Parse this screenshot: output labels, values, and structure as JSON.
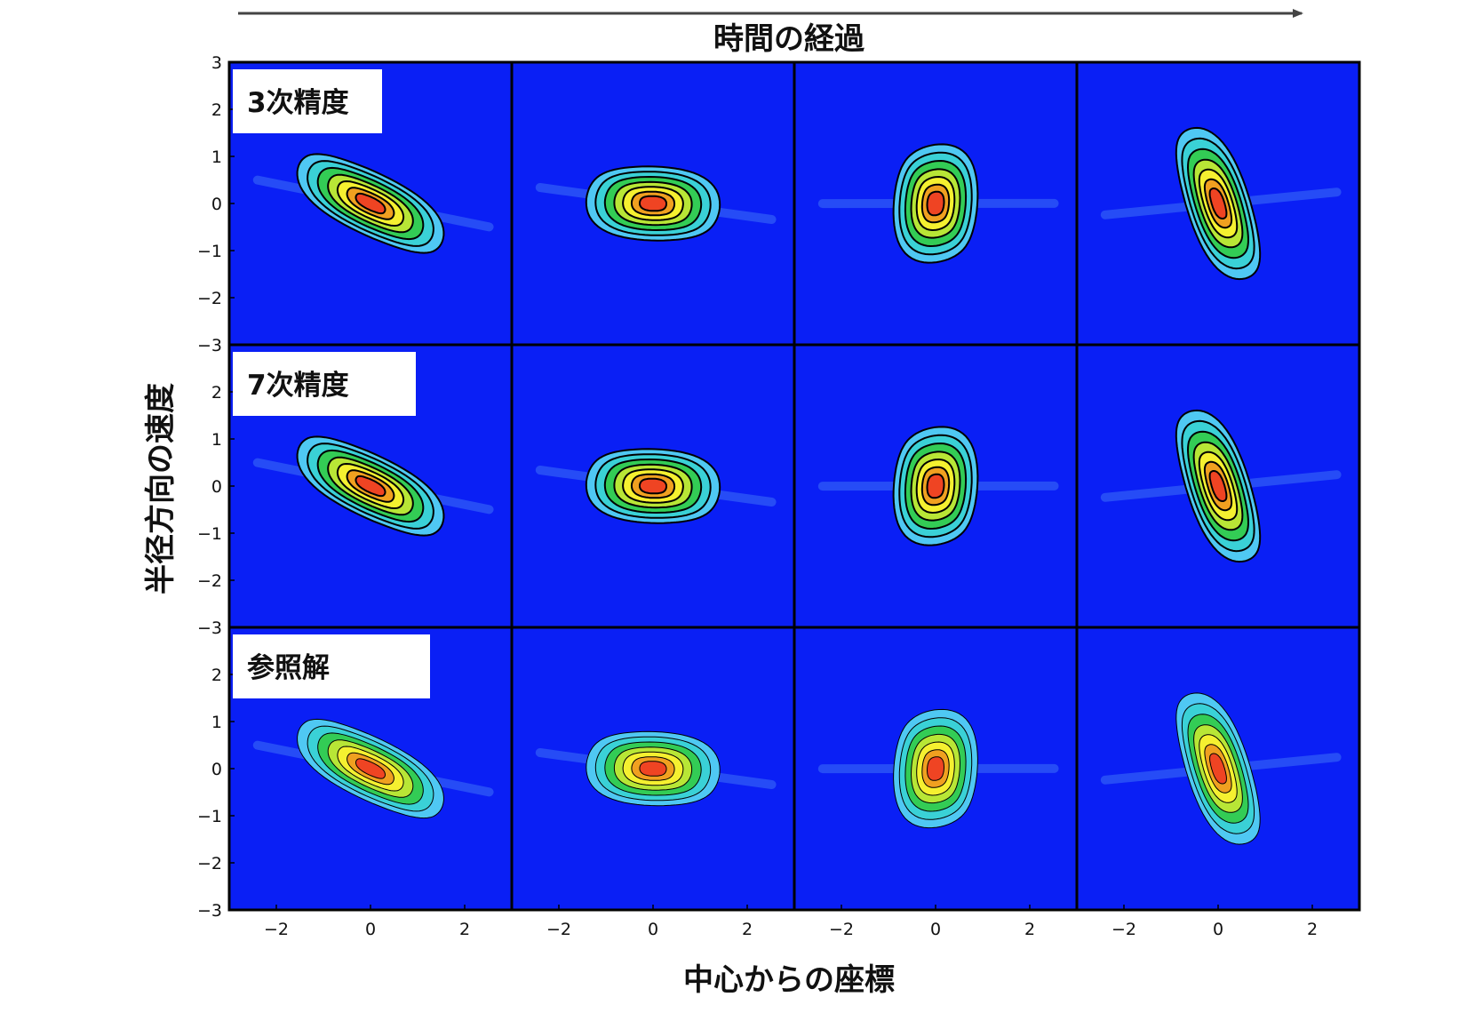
{
  "header": {
    "time_label": "時間の経過"
  },
  "axes": {
    "xlabel": "中心からの座標",
    "ylabel": "半径方向の速度"
  },
  "colors": {
    "background": "#0a1ff5",
    "levels": [
      "#0a1ff5",
      "#4fc8f3",
      "#3ad1d6",
      "#33cc55",
      "#b8e636",
      "#f5f030",
      "#f0a020",
      "#ef4423"
    ],
    "contour": "#000000"
  },
  "chart_data": {
    "type": "heatmap",
    "title": "",
    "xlabel": "中心からの座標",
    "ylabel": "半径方向の速度",
    "xlim": [
      -3,
      3
    ],
    "ylim": [
      -3,
      3
    ],
    "x_ticks": [
      -2,
      0,
      2
    ],
    "y_ticks": [
      -3,
      -2,
      -1,
      0,
      1,
      2,
      3
    ],
    "grid": false,
    "rows": [
      {
        "label": "3次精度",
        "panels": [
          {
            "rotation": 0.0
          },
          {
            "rotation": 0.95
          },
          {
            "rotation": 1.9
          },
          {
            "rotation": 2.85
          }
        ],
        "resolution": "low"
      },
      {
        "label": "7次精度",
        "panels": [
          {
            "rotation": 0.0
          },
          {
            "rotation": 0.95
          },
          {
            "rotation": 1.9
          },
          {
            "rotation": 2.85
          }
        ],
        "resolution": "high"
      },
      {
        "label": "参照解",
        "panels": [
          {
            "rotation": 0.0
          },
          {
            "rotation": 0.95
          },
          {
            "rotation": 1.9
          },
          {
            "rotation": 2.85
          }
        ],
        "resolution": "reference"
      }
    ]
  }
}
